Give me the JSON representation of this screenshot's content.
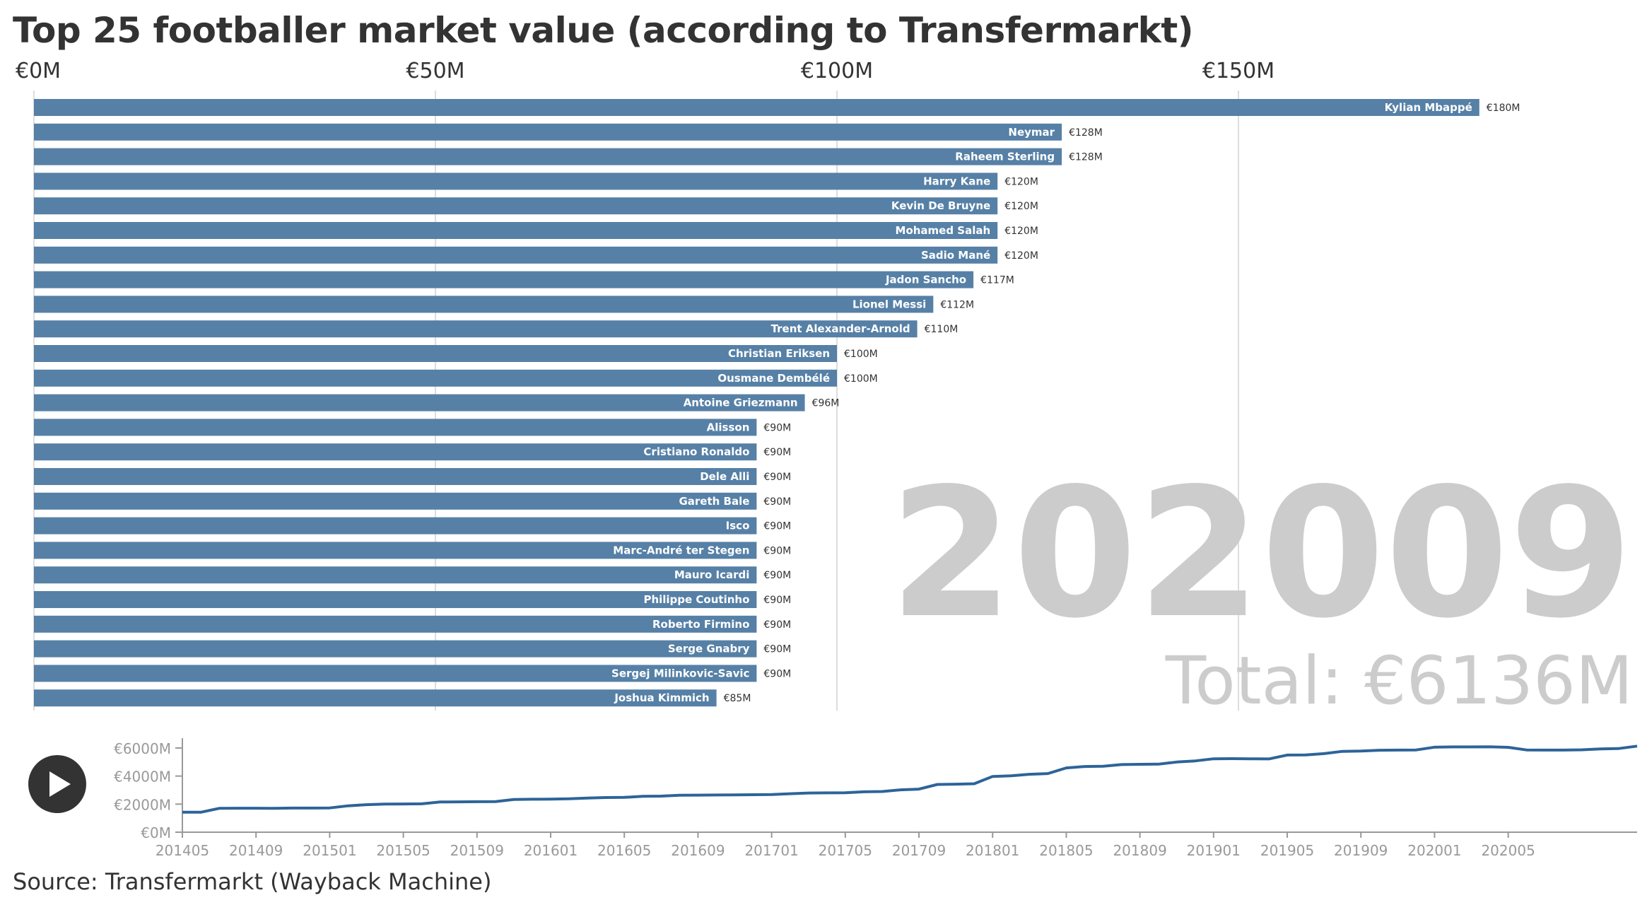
{
  "title": "Top 25 footballer market value (according to Transfermarkt)",
  "source": "Source: Transfermarkt (Wayback Machine)",
  "colors": {
    "bar": "#5680a6",
    "line": "#2d6499",
    "grid": "#dddddd",
    "big_text": "#cccccc",
    "axis": "#999999"
  },
  "chart_data": [
    {
      "type": "bar",
      "orientation": "horizontal",
      "current_period": "202009",
      "total_label": "Total: €6136M",
      "xaxis_ticks": [
        "€0M",
        "€50M",
        "€100M",
        "€150M"
      ],
      "xlim": [
        0,
        180
      ],
      "unit": "€M",
      "categories": [
        "Kylian Mbappé",
        "Neymar",
        "Raheem Sterling",
        "Harry Kane",
        "Kevin De Bruyne",
        "Mohamed Salah",
        "Sadio Mané",
        "Jadon Sancho",
        "Lionel Messi",
        "Trent Alexander-Arnold",
        "Christian Eriksen",
        "Ousmane Dembélé",
        "Antoine Griezmann",
        "Alisson",
        "Cristiano Ronaldo",
        "Dele Alli",
        "Gareth Bale",
        "Isco",
        "Marc-André ter Stegen",
        "Mauro Icardi",
        "Philippe Coutinho",
        "Roberto Firmino",
        "Serge Gnabry",
        "Sergej Milinkovic-Savic",
        "Joshua Kimmich"
      ],
      "values": [
        180,
        128,
        128,
        120,
        120,
        120,
        120,
        117,
        112,
        110,
        100,
        100,
        96,
        90,
        90,
        90,
        90,
        90,
        90,
        90,
        90,
        90,
        90,
        90,
        85
      ],
      "value_labels": [
        "€180M",
        "€128M",
        "€128M",
        "€120M",
        "€120M",
        "€120M",
        "€120M",
        "€117M",
        "€112M",
        "€110M",
        "€100M",
        "€100M",
        "€96M",
        "€90M",
        "€90M",
        "€90M",
        "€90M",
        "€90M",
        "€90M",
        "€90M",
        "€90M",
        "€90M",
        "€90M",
        "€90M",
        "€85M"
      ]
    },
    {
      "type": "line",
      "y_ticks": [
        "€0M",
        "€2000M",
        "€4000M",
        "€6000M"
      ],
      "ylim": [
        0,
        6300
      ],
      "x_ticks": [
        "201405",
        "201409",
        "201501",
        "201505",
        "201509",
        "201601",
        "201605",
        "201609",
        "201701",
        "201705",
        "201709",
        "201801",
        "201805",
        "201809",
        "201901",
        "201905",
        "201909",
        "202001",
        "202005"
      ],
      "series": [
        {
          "values": [
            1420,
            1420,
            1700,
            1710,
            1710,
            1700,
            1720,
            1720,
            1730,
            1880,
            1960,
            2000,
            2010,
            2020,
            2150,
            2160,
            2170,
            2180,
            2330,
            2350,
            2360,
            2380,
            2430,
            2470,
            2480,
            2560,
            2570,
            2630,
            2640,
            2650,
            2660,
            2670,
            2680,
            2740,
            2790,
            2800,
            2810,
            2880,
            2900,
            3020,
            3070,
            3400,
            3420,
            3450,
            3970,
            4020,
            4130,
            4180,
            4580,
            4680,
            4700,
            4820,
            4840,
            4850,
            5000,
            5080,
            5230,
            5240,
            5230,
            5220,
            5500,
            5510,
            5600,
            5760,
            5780,
            5840,
            5850,
            5860,
            6060,
            6080,
            6080,
            6090,
            6050,
            5860,
            5850,
            5850,
            5870,
            5930,
            5960,
            6136
          ]
        }
      ]
    }
  ]
}
